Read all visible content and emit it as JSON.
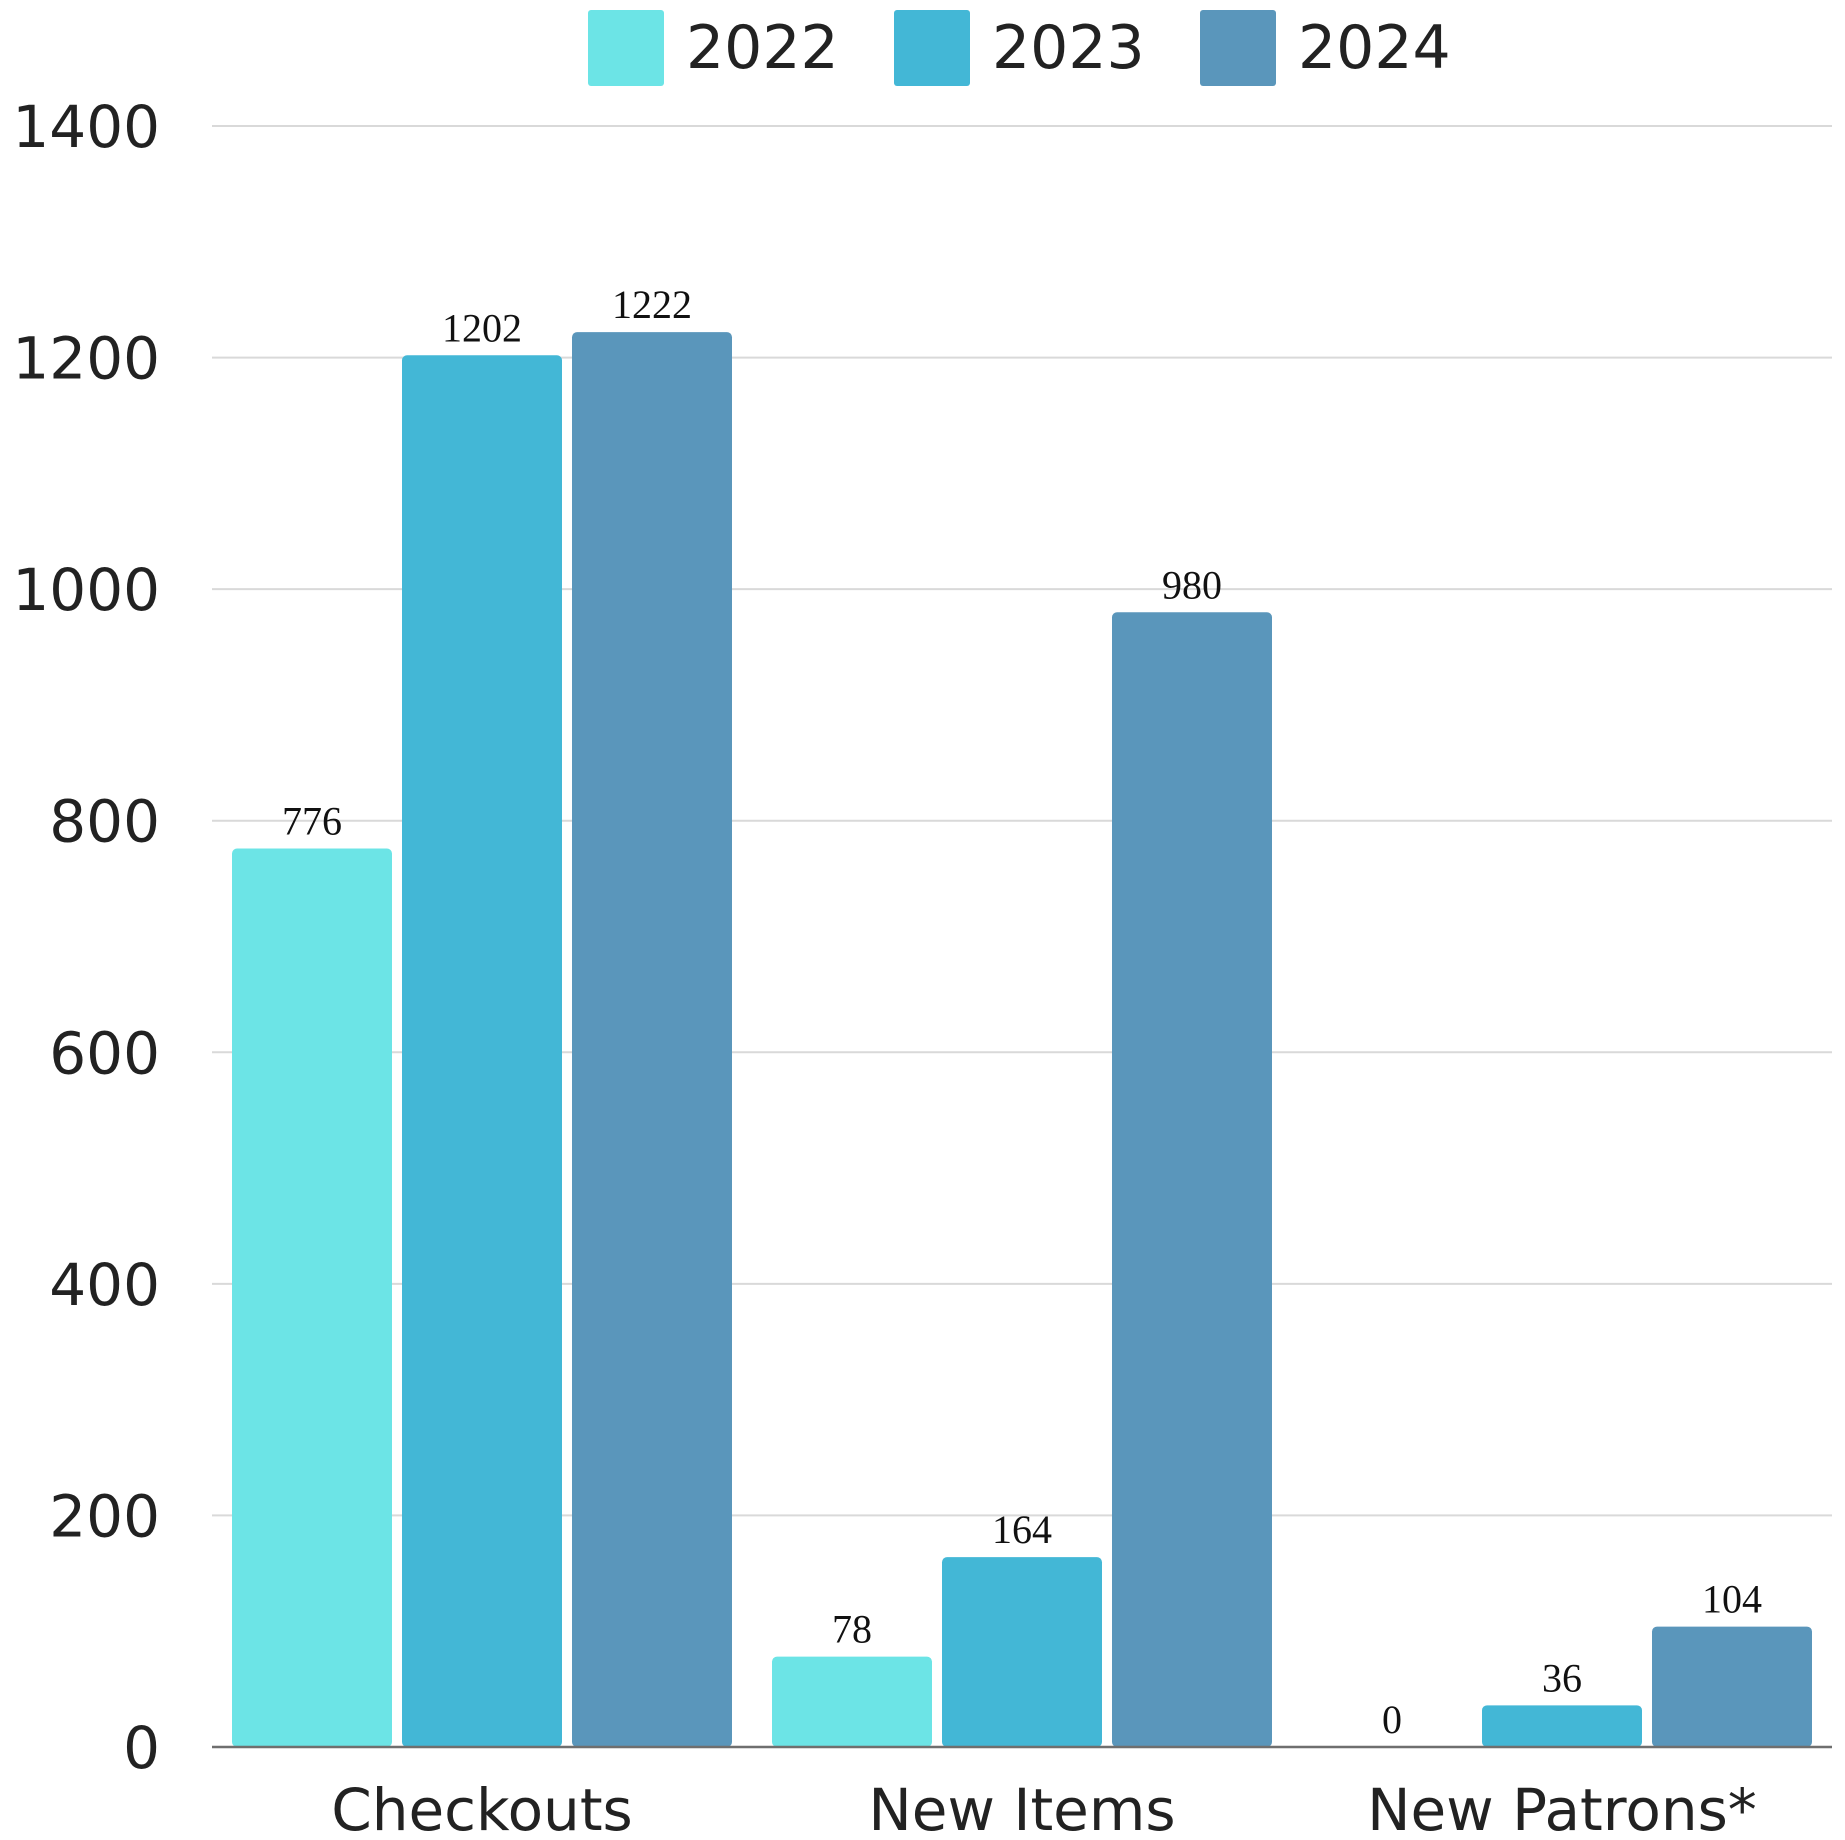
{
  "chart_data": {
    "type": "bar",
    "categories": [
      "Checkouts",
      "New Items",
      "New Patrons*"
    ],
    "series": [
      {
        "name": "2022",
        "color": "#6ce4e6",
        "values": [
          776,
          78,
          0
        ]
      },
      {
        "name": "2023",
        "color": "#43b7d6",
        "values": [
          1202,
          164,
          36
        ]
      },
      {
        "name": "2024",
        "color": "#5a96bb",
        "values": [
          1222,
          980,
          104
        ]
      }
    ],
    "ylim": [
      0,
      1400
    ],
    "yticks": [
      "0",
      "200",
      "400",
      "600",
      "800",
      "1000",
      "1200",
      "1400"
    ],
    "grid": true,
    "legend": "top-center",
    "data_labels": [
      [
        "776",
        "1202",
        "1222"
      ],
      [
        "78",
        "164",
        "980"
      ],
      [
        "0",
        "36",
        "104"
      ]
    ]
  }
}
